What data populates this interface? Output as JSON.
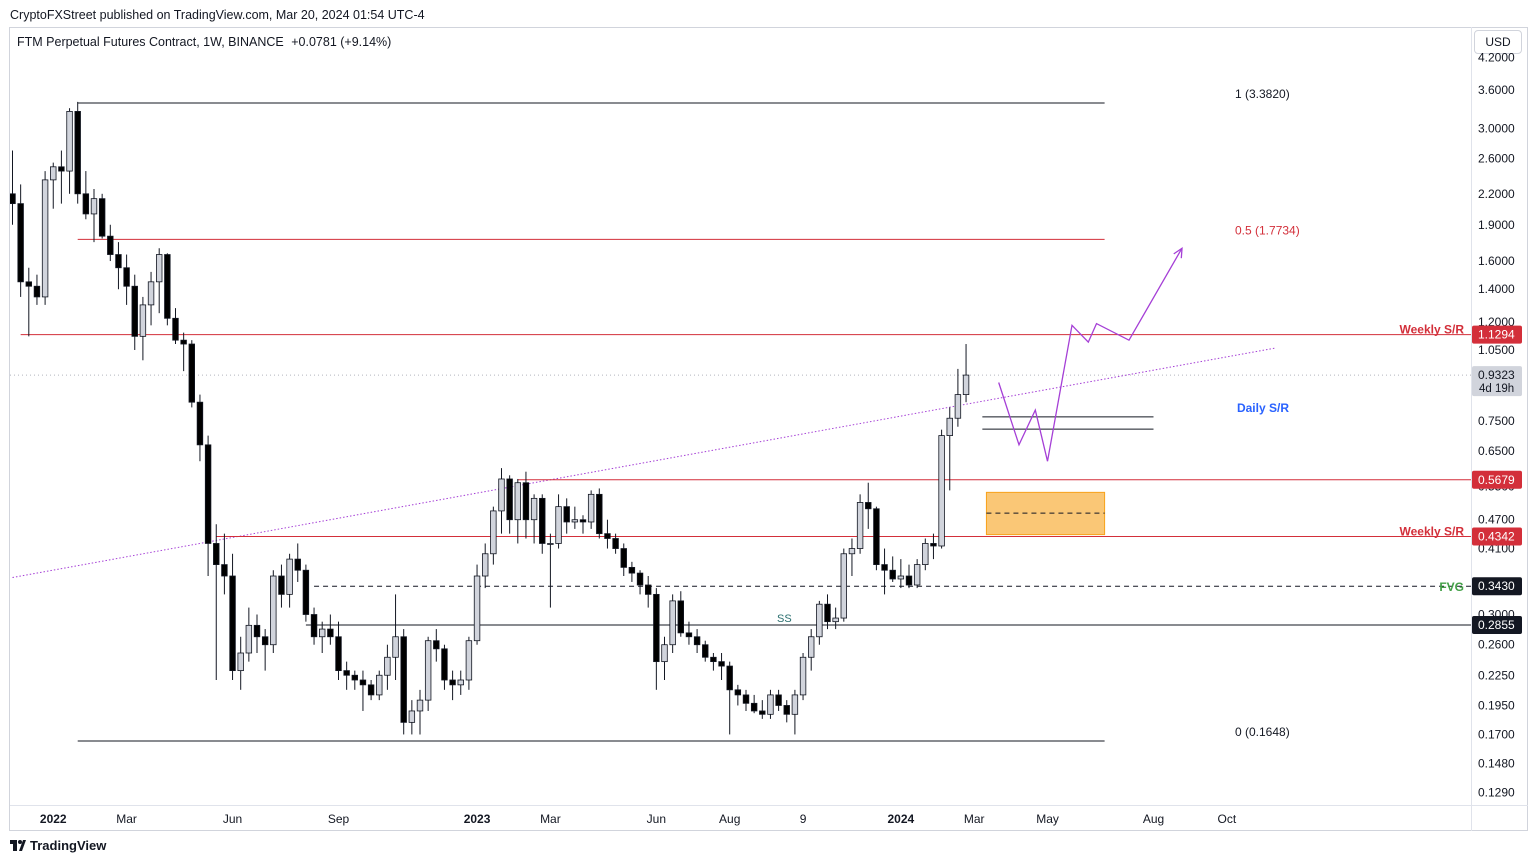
{
  "header": {
    "published": "CryptoFXStreet published on TradingView.com, Mar 20, 2024 01:54 UTC-4",
    "symbol": "FTM Perpetual Futures Contract, 1W, BINANCE",
    "change": "+0.0781 (+9.14%)",
    "currency": "USD"
  },
  "footer": {
    "brand": "TradingView"
  },
  "colors": {
    "up": "#d1d4dc",
    "down": "#000000",
    "resistance": "#d32f3a",
    "daily": "#2962ff",
    "fvg": "#43a047",
    "projection": "#a53fd6",
    "zone": "#f7a21b"
  },
  "chart_data": {
    "type": "candlestick",
    "title": "",
    "scale": "log",
    "ylim": [
      0.12,
      4.4
    ],
    "x_axis": {
      "ticks": [
        {
          "label": "2022",
          "bold": true,
          "i": 5
        },
        {
          "label": "Mar",
          "i": 14
        },
        {
          "label": "Jun",
          "i": 27
        },
        {
          "label": "Sep",
          "i": 40
        },
        {
          "label": "2023",
          "bold": true,
          "i": 57
        },
        {
          "label": "Mar",
          "i": 66
        },
        {
          "label": "Jun",
          "i": 79
        },
        {
          "label": "Aug",
          "i": 88
        },
        {
          "label": "9",
          "i": 97
        },
        {
          "label": "2024",
          "bold": true,
          "i": 109
        },
        {
          "label": "Mar",
          "i": 118
        },
        {
          "label": "May",
          "i": 127
        },
        {
          "label": "Aug",
          "i": 140
        },
        {
          "label": "Oct",
          "i": 149
        }
      ]
    },
    "y_axis": {
      "ticks": [
        "4.2000",
        "3.6000",
        "3.0000",
        "2.6000",
        "2.2000",
        "1.9000",
        "1.6000",
        "1.4000",
        "1.2000",
        "1.0500",
        "0.7500",
        "0.6500",
        "0.5500",
        "0.4700",
        "0.4100",
        "0.3000",
        "0.2600",
        "0.2250",
        "0.1950",
        "0.1700",
        "0.1480",
        "0.1290"
      ]
    },
    "candles": [
      {
        "o": 2.2,
        "h": 2.7,
        "l": 1.9,
        "c": 2.1
      },
      {
        "o": 2.1,
        "h": 2.3,
        "l": 1.35,
        "c": 1.45
      },
      {
        "o": 1.45,
        "h": 1.55,
        "l": 1.12,
        "c": 1.42
      },
      {
        "o": 1.42,
        "h": 1.5,
        "l": 1.3,
        "c": 1.35
      },
      {
        "o": 1.35,
        "h": 2.45,
        "l": 1.3,
        "c": 2.35
      },
      {
        "o": 2.35,
        "h": 2.55,
        "l": 2.05,
        "c": 2.5
      },
      {
        "o": 2.5,
        "h": 2.7,
        "l": 2.1,
        "c": 2.45
      },
      {
        "o": 2.45,
        "h": 3.3,
        "l": 2.2,
        "c": 3.25
      },
      {
        "o": 3.25,
        "h": 3.4,
        "l": 2.1,
        "c": 2.2
      },
      {
        "o": 2.2,
        "h": 2.45,
        "l": 1.95,
        "c": 2.0
      },
      {
        "o": 2.0,
        "h": 2.25,
        "l": 1.75,
        "c": 2.15
      },
      {
        "o": 2.15,
        "h": 2.2,
        "l": 1.78,
        "c": 1.8
      },
      {
        "o": 1.8,
        "h": 1.9,
        "l": 1.6,
        "c": 1.65
      },
      {
        "o": 1.65,
        "h": 1.75,
        "l": 1.4,
        "c": 1.55
      },
      {
        "o": 1.55,
        "h": 1.65,
        "l": 1.3,
        "c": 1.42
      },
      {
        "o": 1.42,
        "h": 1.5,
        "l": 1.05,
        "c": 1.12
      },
      {
        "o": 1.12,
        "h": 1.35,
        "l": 1.0,
        "c": 1.3
      },
      {
        "o": 1.3,
        "h": 1.52,
        "l": 1.18,
        "c": 1.45
      },
      {
        "o": 1.45,
        "h": 1.7,
        "l": 1.25,
        "c": 1.65
      },
      {
        "o": 1.65,
        "h": 1.66,
        "l": 1.18,
        "c": 1.22
      },
      {
        "o": 1.22,
        "h": 1.28,
        "l": 1.08,
        "c": 1.1
      },
      {
        "o": 1.1,
        "h": 1.14,
        "l": 0.95,
        "c": 1.08
      },
      {
        "o": 1.08,
        "h": 1.1,
        "l": 0.8,
        "c": 0.82
      },
      {
        "o": 0.82,
        "h": 0.85,
        "l": 0.62,
        "c": 0.67
      },
      {
        "o": 0.67,
        "h": 0.7,
        "l": 0.36,
        "c": 0.42
      },
      {
        "o": 0.42,
        "h": 0.46,
        "l": 0.22,
        "c": 0.38
      },
      {
        "o": 0.38,
        "h": 0.44,
        "l": 0.33,
        "c": 0.36
      },
      {
        "o": 0.36,
        "h": 0.4,
        "l": 0.22,
        "c": 0.23
      },
      {
        "o": 0.23,
        "h": 0.27,
        "l": 0.21,
        "c": 0.25
      },
      {
        "o": 0.25,
        "h": 0.31,
        "l": 0.24,
        "c": 0.285
      },
      {
        "o": 0.285,
        "h": 0.3,
        "l": 0.25,
        "c": 0.27
      },
      {
        "o": 0.27,
        "h": 0.28,
        "l": 0.23,
        "c": 0.26
      },
      {
        "o": 0.26,
        "h": 0.37,
        "l": 0.25,
        "c": 0.36
      },
      {
        "o": 0.36,
        "h": 0.38,
        "l": 0.31,
        "c": 0.33
      },
      {
        "o": 0.33,
        "h": 0.4,
        "l": 0.31,
        "c": 0.39
      },
      {
        "o": 0.39,
        "h": 0.42,
        "l": 0.35,
        "c": 0.37
      },
      {
        "o": 0.37,
        "h": 0.38,
        "l": 0.29,
        "c": 0.3
      },
      {
        "o": 0.3,
        "h": 0.31,
        "l": 0.26,
        "c": 0.27
      },
      {
        "o": 0.27,
        "h": 0.29,
        "l": 0.25,
        "c": 0.28
      },
      {
        "o": 0.28,
        "h": 0.3,
        "l": 0.26,
        "c": 0.27
      },
      {
        "o": 0.27,
        "h": 0.29,
        "l": 0.22,
        "c": 0.23
      },
      {
        "o": 0.23,
        "h": 0.24,
        "l": 0.21,
        "c": 0.225
      },
      {
        "o": 0.225,
        "h": 0.23,
        "l": 0.21,
        "c": 0.22
      },
      {
        "o": 0.22,
        "h": 0.23,
        "l": 0.19,
        "c": 0.215
      },
      {
        "o": 0.215,
        "h": 0.22,
        "l": 0.2,
        "c": 0.205
      },
      {
        "o": 0.205,
        "h": 0.23,
        "l": 0.2,
        "c": 0.225
      },
      {
        "o": 0.225,
        "h": 0.26,
        "l": 0.21,
        "c": 0.245
      },
      {
        "o": 0.245,
        "h": 0.33,
        "l": 0.22,
        "c": 0.27
      },
      {
        "o": 0.27,
        "h": 0.28,
        "l": 0.17,
        "c": 0.18
      },
      {
        "o": 0.18,
        "h": 0.2,
        "l": 0.17,
        "c": 0.19
      },
      {
        "o": 0.19,
        "h": 0.21,
        "l": 0.17,
        "c": 0.2
      },
      {
        "o": 0.2,
        "h": 0.27,
        "l": 0.19,
        "c": 0.265
      },
      {
        "o": 0.265,
        "h": 0.28,
        "l": 0.24,
        "c": 0.255
      },
      {
        "o": 0.255,
        "h": 0.26,
        "l": 0.21,
        "c": 0.22
      },
      {
        "o": 0.22,
        "h": 0.23,
        "l": 0.2,
        "c": 0.215
      },
      {
        "o": 0.215,
        "h": 0.23,
        "l": 0.205,
        "c": 0.22
      },
      {
        "o": 0.22,
        "h": 0.27,
        "l": 0.21,
        "c": 0.265
      },
      {
        "o": 0.265,
        "h": 0.38,
        "l": 0.26,
        "c": 0.36
      },
      {
        "o": 0.36,
        "h": 0.42,
        "l": 0.34,
        "c": 0.4
      },
      {
        "o": 0.4,
        "h": 0.5,
        "l": 0.38,
        "c": 0.49
      },
      {
        "o": 0.49,
        "h": 0.6,
        "l": 0.44,
        "c": 0.57
      },
      {
        "o": 0.57,
        "h": 0.58,
        "l": 0.44,
        "c": 0.47
      },
      {
        "o": 0.47,
        "h": 0.57,
        "l": 0.42,
        "c": 0.56
      },
      {
        "o": 0.56,
        "h": 0.59,
        "l": 0.43,
        "c": 0.47
      },
      {
        "o": 0.47,
        "h": 0.53,
        "l": 0.42,
        "c": 0.52
      },
      {
        "o": 0.52,
        "h": 0.53,
        "l": 0.4,
        "c": 0.42
      },
      {
        "o": 0.42,
        "h": 0.44,
        "l": 0.31,
        "c": 0.42
      },
      {
        "o": 0.42,
        "h": 0.53,
        "l": 0.41,
        "c": 0.5
      },
      {
        "o": 0.5,
        "h": 0.52,
        "l": 0.44,
        "c": 0.465
      },
      {
        "o": 0.465,
        "h": 0.5,
        "l": 0.45,
        "c": 0.47
      },
      {
        "o": 0.47,
        "h": 0.48,
        "l": 0.44,
        "c": 0.465
      },
      {
        "o": 0.465,
        "h": 0.54,
        "l": 0.45,
        "c": 0.53
      },
      {
        "o": 0.53,
        "h": 0.545,
        "l": 0.43,
        "c": 0.44
      },
      {
        "o": 0.44,
        "h": 0.47,
        "l": 0.41,
        "c": 0.43
      },
      {
        "o": 0.43,
        "h": 0.44,
        "l": 0.4,
        "c": 0.41
      },
      {
        "o": 0.41,
        "h": 0.42,
        "l": 0.36,
        "c": 0.375
      },
      {
        "o": 0.375,
        "h": 0.385,
        "l": 0.35,
        "c": 0.365
      },
      {
        "o": 0.365,
        "h": 0.37,
        "l": 0.33,
        "c": 0.345
      },
      {
        "o": 0.345,
        "h": 0.36,
        "l": 0.31,
        "c": 0.33
      },
      {
        "o": 0.33,
        "h": 0.34,
        "l": 0.21,
        "c": 0.24
      },
      {
        "o": 0.24,
        "h": 0.27,
        "l": 0.22,
        "c": 0.26
      },
      {
        "o": 0.26,
        "h": 0.33,
        "l": 0.25,
        "c": 0.32
      },
      {
        "o": 0.32,
        "h": 0.335,
        "l": 0.27,
        "c": 0.275
      },
      {
        "o": 0.275,
        "h": 0.29,
        "l": 0.26,
        "c": 0.27
      },
      {
        "o": 0.27,
        "h": 0.28,
        "l": 0.25,
        "c": 0.26
      },
      {
        "o": 0.26,
        "h": 0.265,
        "l": 0.24,
        "c": 0.245
      },
      {
        "o": 0.245,
        "h": 0.25,
        "l": 0.23,
        "c": 0.24
      },
      {
        "o": 0.24,
        "h": 0.25,
        "l": 0.22,
        "c": 0.235
      },
      {
        "o": 0.235,
        "h": 0.24,
        "l": 0.17,
        "c": 0.21
      },
      {
        "o": 0.21,
        "h": 0.215,
        "l": 0.195,
        "c": 0.205
      },
      {
        "o": 0.205,
        "h": 0.21,
        "l": 0.19,
        "c": 0.197
      },
      {
        "o": 0.197,
        "h": 0.205,
        "l": 0.188,
        "c": 0.19
      },
      {
        "o": 0.19,
        "h": 0.2,
        "l": 0.183,
        "c": 0.187
      },
      {
        "o": 0.187,
        "h": 0.21,
        "l": 0.183,
        "c": 0.205
      },
      {
        "o": 0.205,
        "h": 0.21,
        "l": 0.19,
        "c": 0.195
      },
      {
        "o": 0.195,
        "h": 0.2,
        "l": 0.18,
        "c": 0.187
      },
      {
        "o": 0.187,
        "h": 0.21,
        "l": 0.17,
        "c": 0.205
      },
      {
        "o": 0.205,
        "h": 0.25,
        "l": 0.2,
        "c": 0.245
      },
      {
        "o": 0.245,
        "h": 0.28,
        "l": 0.23,
        "c": 0.27
      },
      {
        "o": 0.27,
        "h": 0.32,
        "l": 0.26,
        "c": 0.315
      },
      {
        "o": 0.315,
        "h": 0.33,
        "l": 0.28,
        "c": 0.29
      },
      {
        "o": 0.29,
        "h": 0.31,
        "l": 0.28,
        "c": 0.295
      },
      {
        "o": 0.295,
        "h": 0.41,
        "l": 0.29,
        "c": 0.4
      },
      {
        "o": 0.4,
        "h": 0.43,
        "l": 0.36,
        "c": 0.41
      },
      {
        "o": 0.41,
        "h": 0.53,
        "l": 0.4,
        "c": 0.51
      },
      {
        "o": 0.51,
        "h": 0.56,
        "l": 0.45,
        "c": 0.495
      },
      {
        "o": 0.495,
        "h": 0.5,
        "l": 0.37,
        "c": 0.38
      },
      {
        "o": 0.38,
        "h": 0.41,
        "l": 0.33,
        "c": 0.37
      },
      {
        "o": 0.37,
        "h": 0.395,
        "l": 0.35,
        "c": 0.355
      },
      {
        "o": 0.355,
        "h": 0.39,
        "l": 0.34,
        "c": 0.36
      },
      {
        "o": 0.36,
        "h": 0.38,
        "l": 0.34,
        "c": 0.345
      },
      {
        "o": 0.345,
        "h": 0.39,
        "l": 0.34,
        "c": 0.38
      },
      {
        "o": 0.38,
        "h": 0.43,
        "l": 0.37,
        "c": 0.42
      },
      {
        "o": 0.42,
        "h": 0.44,
        "l": 0.39,
        "c": 0.415
      },
      {
        "o": 0.415,
        "h": 0.72,
        "l": 0.41,
        "c": 0.7
      },
      {
        "o": 0.7,
        "h": 0.8,
        "l": 0.54,
        "c": 0.76
      },
      {
        "o": 0.76,
        "h": 0.96,
        "l": 0.73,
        "c": 0.85
      },
      {
        "o": 0.85,
        "h": 1.08,
        "l": 0.82,
        "c": 0.9323
      }
    ],
    "levels": [
      {
        "name": "fib-1",
        "label": "1 (3.3820)",
        "value": 3.382,
        "from": 8,
        "to": 134,
        "color": "#131722"
      },
      {
        "name": "fib-05",
        "label": "0.5 (1.7734)",
        "value": 1.7734,
        "from": 8,
        "to": 134,
        "color": "#d32f3a"
      },
      {
        "name": "fib-0",
        "label": "0 (0.1648)",
        "value": 0.1648,
        "from": 8,
        "to": 134,
        "color": "#131722"
      },
      {
        "name": "weekly-sr-upper",
        "label": "Weekly S/R",
        "value": 1.1294,
        "from": 1,
        "to": 155,
        "color": "#d32f3a",
        "tag": "1.1294"
      },
      {
        "name": "level-05679",
        "label": "",
        "value": 0.5679,
        "from": 62,
        "to": 155,
        "color": "#d32f3a",
        "tag": "0.5679"
      },
      {
        "name": "weekly-sr-lower",
        "label": "Weekly S/R",
        "value": 0.4342,
        "from": 25,
        "to": 155,
        "color": "#d32f3a",
        "tag": "0.4342"
      },
      {
        "name": "fvg-line",
        "label": "FVG",
        "value": 0.343,
        "from": 37,
        "to": 155,
        "color": "#131722",
        "dashed": true,
        "tag": "0.3430"
      },
      {
        "name": "support-02855",
        "label": "",
        "value": 0.2855,
        "from": 36,
        "to": 155,
        "color": "#131722",
        "tag": "0.2855"
      },
      {
        "name": "daily-sr",
        "label": "Daily S/R",
        "value": 0.722,
        "from": 119,
        "to": 140,
        "color": "#131722"
      }
    ],
    "daily_sr_upper": 0.765,
    "current_price": {
      "value": "0.9323",
      "countdown": "4d 19h"
    },
    "ss_label": "SS",
    "zone": {
      "from": 119.5,
      "to": 134,
      "top": 0.535,
      "bottom": 0.438,
      "mid": 0.485
    },
    "trendline": {
      "i1": 0,
      "v1": 0.3575,
      "i2": 155,
      "v2": 1.06
    },
    "projection": [
      {
        "i": 121,
        "v": 0.9
      },
      {
        "i": 123.5,
        "v": 0.67
      },
      {
        "i": 125.5,
        "v": 0.79
      },
      {
        "i": 127,
        "v": 0.62
      },
      {
        "i": 130,
        "v": 1.18
      },
      {
        "i": 132,
        "v": 1.09
      },
      {
        "i": 133,
        "v": 1.19
      },
      {
        "i": 137,
        "v": 1.1
      },
      {
        "i": 143.5,
        "v": 1.7
      }
    ]
  }
}
